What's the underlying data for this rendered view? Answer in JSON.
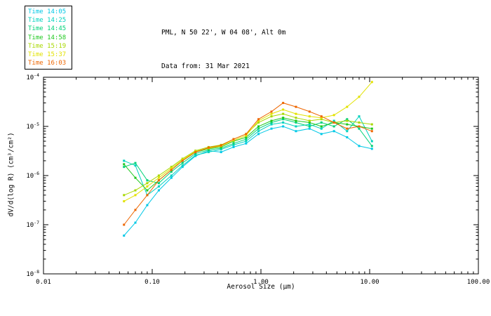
{
  "header": {
    "title_line1": "PML, N 50 22', W 04 08', Alt 0m",
    "title_line2": "Data from: 31 Mar 2021"
  },
  "chart_data": {
    "type": "line",
    "x_scale": "log",
    "y_scale": "log",
    "xlabel": "Aerosol Size (μm)",
    "ylabel": "dV/d(log R) (cm³/cm²)",
    "xlim": [
      0.01,
      100.0
    ],
    "ylim": [
      1e-08,
      0.0001
    ],
    "x_tick_labels": [
      "0.01",
      "0.10",
      "1.00",
      "10.00",
      "100.00"
    ],
    "y_tick_base": "10",
    "y_tick_exponents": [
      "-8",
      "-7",
      "-6",
      "-5",
      "-4"
    ],
    "legend_position": "top-left",
    "grid": false,
    "x": [
      0.055,
      0.07,
      0.09,
      0.115,
      0.15,
      0.19,
      0.25,
      0.33,
      0.43,
      0.56,
      0.73,
      0.95,
      1.25,
      1.6,
      2.1,
      2.8,
      3.6,
      4.7,
      6.2,
      8.0,
      10.5
    ],
    "series": [
      {
        "name": "Time 14:05",
        "color": "#00c8e6",
        "values": [
          6e-08,
          1.1e-07,
          2.5e-07,
          5e-07,
          9e-07,
          1.5e-06,
          2.5e-06,
          3.2e-06,
          3e-06,
          3.8e-06,
          4.5e-06,
          7e-06,
          9e-06,
          1e-05,
          8e-06,
          9e-06,
          7e-06,
          8e-06,
          6e-06,
          4e-06,
          3.5e-06
        ]
      },
      {
        "name": "Time 14:25",
        "color": "#00d2be",
        "values": [
          2e-06,
          1.6e-06,
          4e-07,
          6e-07,
          1e-06,
          1.6e-06,
          2.6e-06,
          3e-06,
          3.4e-06,
          4.2e-06,
          5e-06,
          8e-06,
          1.1e-05,
          1.2e-05,
          1e-05,
          1.1e-05,
          9e-06,
          1.3e-05,
          8e-06,
          1.6e-05,
          5e-06
        ]
      },
      {
        "name": "Time 14:45",
        "color": "#00d278",
        "values": [
          1.5e-06,
          1.8e-06,
          8e-07,
          7e-07,
          1.2e-06,
          1.8e-06,
          2.8e-06,
          3.3e-06,
          3.6e-06,
          4.5e-06,
          5.5e-06,
          9e-06,
          1.2e-05,
          1.4e-05,
          1.2e-05,
          1e-05,
          1.2e-05,
          1e-05,
          1.4e-05,
          9e-06,
          4e-06
        ]
      },
      {
        "name": "Time 14:58",
        "color": "#1ec81e",
        "values": [
          1.7e-06,
          9e-07,
          5e-07,
          8e-07,
          1.3e-06,
          2e-06,
          3e-06,
          3.5e-06,
          3.8e-06,
          5e-06,
          6e-06,
          1e-05,
          1.3e-05,
          1.5e-05,
          1.3e-05,
          1.2e-05,
          1e-05,
          1.2e-05,
          1.1e-05,
          1e-05,
          9e-06
        ]
      },
      {
        "name": "Time 15:19",
        "color": "#a8d800",
        "values": [
          4e-07,
          5e-07,
          7e-07,
          1e-06,
          1.5e-06,
          2.2e-06,
          3.2e-06,
          3.8e-06,
          4.2e-06,
          5.5e-06,
          7e-06,
          1.2e-05,
          1.6e-05,
          1.8e-05,
          1.5e-05,
          1.3e-05,
          1.4e-05,
          1.2e-05,
          1.3e-05,
          1.2e-05,
          1.1e-05
        ]
      },
      {
        "name": "Time 15:37",
        "color": "#e2e200",
        "values": [
          3e-07,
          4e-07,
          6e-07,
          9e-07,
          1.4e-06,
          2.1e-06,
          3.1e-06,
          3.6e-06,
          4e-06,
          5.2e-06,
          6.5e-06,
          1.3e-05,
          1.8e-05,
          2.2e-05,
          1.8e-05,
          1.6e-05,
          1.5e-05,
          1.7e-05,
          2.5e-05,
          4e-05,
          8e-05
        ]
      },
      {
        "name": "Time 16:03",
        "color": "#ee6600",
        "values": [
          1e-07,
          2e-07,
          4e-07,
          8e-07,
          1.3e-06,
          2e-06,
          3e-06,
          3.7e-06,
          4.1e-06,
          5.5e-06,
          7e-06,
          1.4e-05,
          2e-05,
          3e-05,
          2.5e-05,
          2e-05,
          1.6e-05,
          1.2e-05,
          9e-06,
          1e-05,
          8e-06
        ]
      }
    ]
  }
}
